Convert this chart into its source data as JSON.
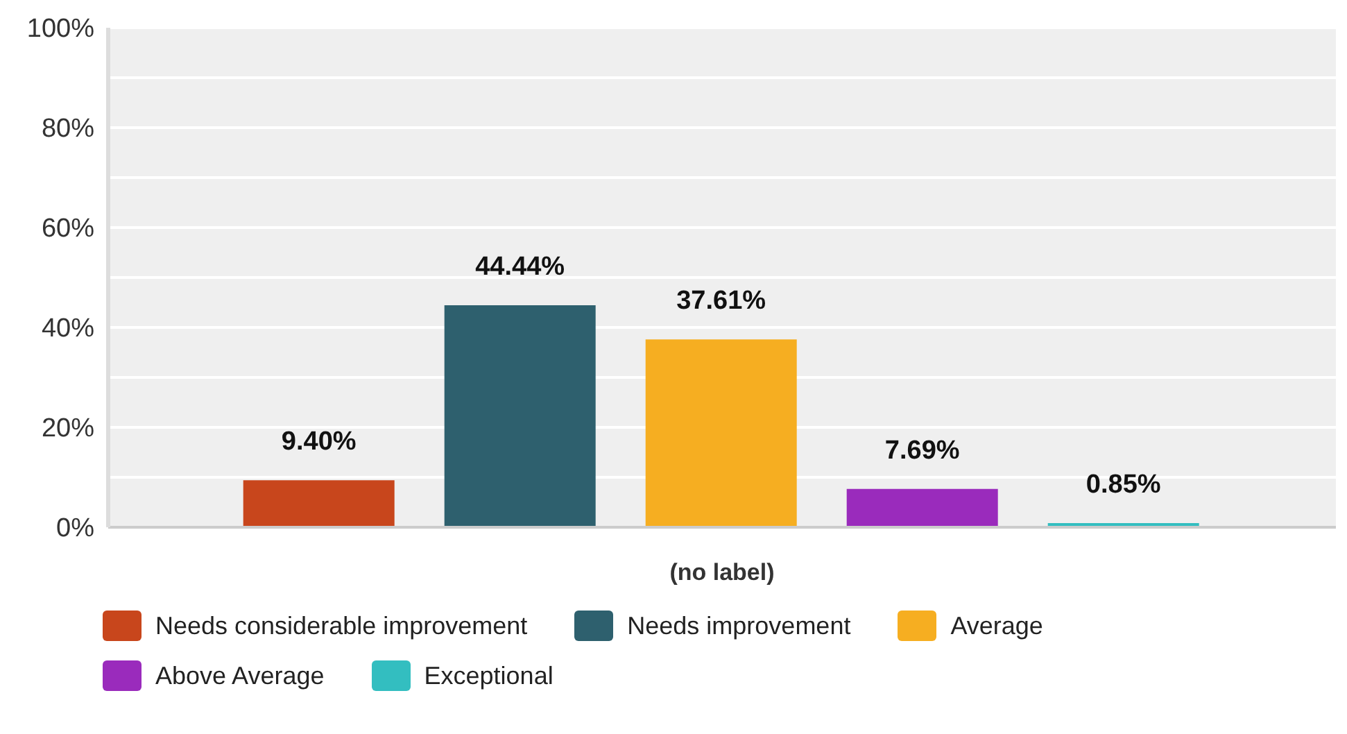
{
  "chart_data": {
    "type": "bar",
    "categories": [
      "(no label)"
    ],
    "series": [
      {
        "name": "Needs considerable improvement",
        "color": "#c8461c",
        "values": [
          9.4
        ],
        "value_labels": [
          "9.40%"
        ]
      },
      {
        "name": "Needs improvement",
        "color": "#2e606e",
        "values": [
          44.44
        ],
        "value_labels": [
          "44.44%"
        ]
      },
      {
        "name": "Average",
        "color": "#f6ae21",
        "values": [
          37.61
        ],
        "value_labels": [
          "37.61%"
        ]
      },
      {
        "name": "Above Average",
        "color": "#9a2bbc",
        "values": [
          7.69
        ],
        "value_labels": [
          "7.69%"
        ]
      },
      {
        "name": "Exceptional",
        "color": "#33bec0",
        "values": [
          0.85
        ],
        "value_labels": [
          "0.85%"
        ]
      }
    ],
    "ylim": [
      0,
      100
    ],
    "yticks": [
      {
        "value": 0,
        "label": "0%"
      },
      {
        "value": 10,
        "label": null
      },
      {
        "value": 20,
        "label": "20%"
      },
      {
        "value": 30,
        "label": null
      },
      {
        "value": 40,
        "label": "40%"
      },
      {
        "value": 50,
        "label": null
      },
      {
        "value": 60,
        "label": "60%"
      },
      {
        "value": 70,
        "label": null
      },
      {
        "value": 80,
        "label": "80%"
      },
      {
        "value": 90,
        "label": null
      },
      {
        "value": 100,
        "label": "100%"
      }
    ],
    "grid": "y",
    "legend": "bottom left"
  }
}
